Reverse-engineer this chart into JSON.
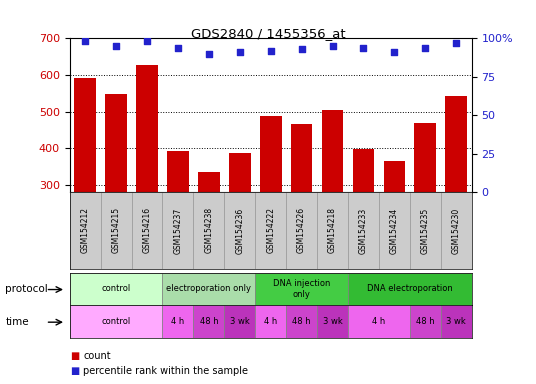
{
  "title": "GDS2840 / 1455356_at",
  "samples": [
    "GSM154212",
    "GSM154215",
    "GSM154216",
    "GSM154237",
    "GSM154238",
    "GSM154236",
    "GSM154222",
    "GSM154226",
    "GSM154218",
    "GSM154233",
    "GSM154234",
    "GSM154235",
    "GSM154230"
  ],
  "counts": [
    592,
    549,
    628,
    393,
    335,
    387,
    487,
    467,
    504,
    398,
    364,
    468,
    542
  ],
  "percentiles": [
    98,
    95,
    98,
    94,
    90,
    91,
    92,
    93,
    95,
    94,
    91,
    94,
    97
  ],
  "bar_color": "#cc0000",
  "dot_color": "#2222cc",
  "ylim_left": [
    280,
    700
  ],
  "ylim_right": [
    0,
    100
  ],
  "yticks_left": [
    300,
    400,
    500,
    600,
    700
  ],
  "yticks_right": [
    0,
    25,
    50,
    75,
    100
  ],
  "protocol_rows": [
    {
      "label": "control",
      "start": 0,
      "end": 3,
      "color": "#ccffcc"
    },
    {
      "label": "electroporation only",
      "start": 3,
      "end": 6,
      "color": "#aaddaa"
    },
    {
      "label": "DNA injection\nonly",
      "start": 6,
      "end": 9,
      "color": "#44cc44"
    },
    {
      "label": "DNA electroporation",
      "start": 9,
      "end": 13,
      "color": "#33bb33"
    }
  ],
  "time_rows": [
    {
      "label": "control",
      "start": 0,
      "end": 3,
      "color": "#ffaaff"
    },
    {
      "label": "4 h",
      "start": 3,
      "end": 4,
      "color": "#ee66ee"
    },
    {
      "label": "48 h",
      "start": 4,
      "end": 5,
      "color": "#cc44cc"
    },
    {
      "label": "3 wk",
      "start": 5,
      "end": 6,
      "color": "#bb33bb"
    },
    {
      "label": "4 h",
      "start": 6,
      "end": 7,
      "color": "#ee66ee"
    },
    {
      "label": "48 h",
      "start": 7,
      "end": 8,
      "color": "#cc44cc"
    },
    {
      "label": "3 wk",
      "start": 8,
      "end": 9,
      "color": "#bb33bb"
    },
    {
      "label": "4 h",
      "start": 9,
      "end": 11,
      "color": "#ee66ee"
    },
    {
      "label": "48 h",
      "start": 11,
      "end": 12,
      "color": "#cc44cc"
    },
    {
      "label": "3 wk",
      "start": 12,
      "end": 13,
      "color": "#bb33bb"
    }
  ],
  "bg_color": "#ffffff",
  "tick_color_left": "#cc0000",
  "tick_color_right": "#2222cc",
  "sample_box_color": "#cccccc",
  "sample_box_edge": "#999999"
}
